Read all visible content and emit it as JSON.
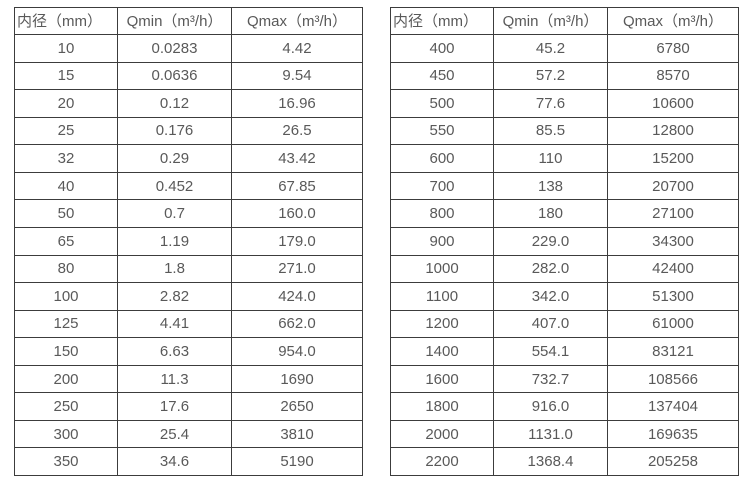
{
  "tables": [
    {
      "headers": [
        "内径（mm）",
        "Qmin（m³/h）",
        "Qmax（m³/h）"
      ],
      "rows": [
        [
          "10",
          "0.0283",
          "4.42"
        ],
        [
          "15",
          "0.0636",
          "9.54"
        ],
        [
          "20",
          "0.12",
          "16.96"
        ],
        [
          "25",
          "0.176",
          "26.5"
        ],
        [
          "32",
          "0.29",
          "43.42"
        ],
        [
          "40",
          "0.452",
          "67.85"
        ],
        [
          "50",
          "0.7",
          "160.0"
        ],
        [
          "65",
          "1.19",
          "179.0"
        ],
        [
          "80",
          "1.8",
          "271.0"
        ],
        [
          "100",
          "2.82",
          "424.0"
        ],
        [
          "125",
          "4.41",
          "662.0"
        ],
        [
          "150",
          "6.63",
          "954.0"
        ],
        [
          "200",
          "11.3",
          "1690"
        ],
        [
          "250",
          "17.6",
          "2650"
        ],
        [
          "300",
          "25.4",
          "3810"
        ],
        [
          "350",
          "34.6",
          "5190"
        ]
      ]
    },
    {
      "headers": [
        "内径（mm）",
        "Qmin（m³/h）",
        "Qmax（m³/h）"
      ],
      "rows": [
        [
          "400",
          "45.2",
          "6780"
        ],
        [
          "450",
          "57.2",
          "8570"
        ],
        [
          "500",
          "77.6",
          "10600"
        ],
        [
          "550",
          "85.5",
          "12800"
        ],
        [
          "600",
          "110",
          "15200"
        ],
        [
          "700",
          "138",
          "20700"
        ],
        [
          "800",
          "180",
          "27100"
        ],
        [
          "900",
          "229.0",
          "34300"
        ],
        [
          "1000",
          "282.0",
          "42400"
        ],
        [
          "1100",
          "342.0",
          "51300"
        ],
        [
          "1200",
          "407.0",
          "61000"
        ],
        [
          "1400",
          "554.1",
          "83121"
        ],
        [
          "1600",
          "732.7",
          "108566"
        ],
        [
          "1800",
          "916.0",
          "137404"
        ],
        [
          "2000",
          "1131.0",
          "169635"
        ],
        [
          "2200",
          "1368.4",
          "205258"
        ]
      ]
    }
  ],
  "colors": {
    "border": "#3c3c3c",
    "text": "#595959",
    "background": "#ffffff"
  }
}
